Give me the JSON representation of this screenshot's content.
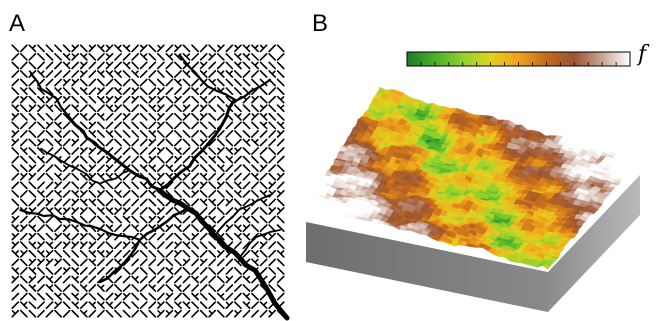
{
  "panels": {
    "a": {
      "label": "A"
    },
    "b": {
      "label": "B"
    }
  },
  "colorbar": {
    "symbol": "f",
    "stops": [
      "#1f7a2e",
      "#49b02a",
      "#8fd12c",
      "#e3d21e",
      "#f0a21a",
      "#c46a1c",
      "#9b5530",
      "#c9a596",
      "#ffffff"
    ]
  },
  "colors": {
    "network_line": "#000000",
    "terrain_side": "#7a7a7a",
    "terrain_side_dark": "#5e5e5e"
  }
}
